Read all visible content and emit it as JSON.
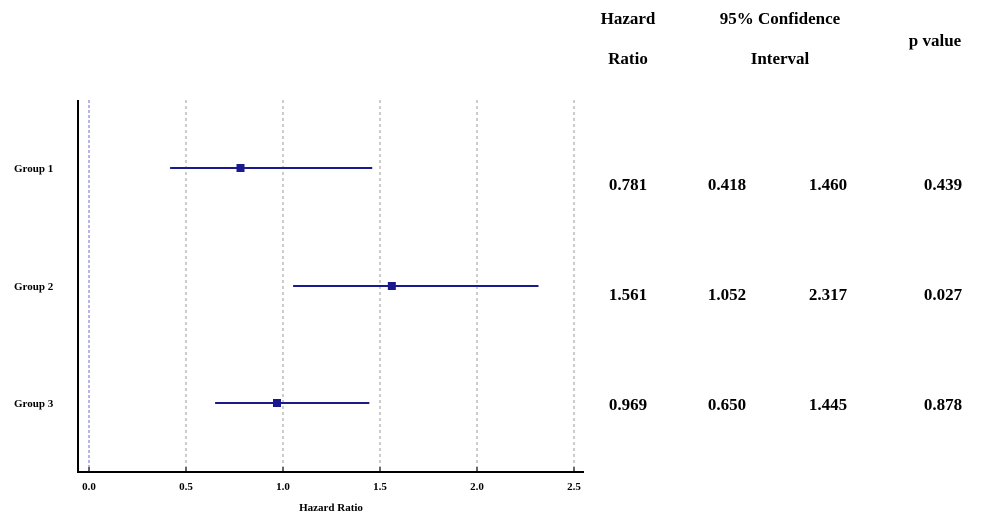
{
  "chart_data": {
    "type": "forest",
    "xlabel": "Hazard Ratio",
    "xlim": [
      0.0,
      2.5
    ],
    "xticks": [
      "0.0",
      "0.5",
      "1.0",
      "1.5",
      "2.0",
      "2.5"
    ],
    "grid": "vertical dashed at ticks",
    "reference_line": 0.0,
    "colors": {
      "marker": "#1a1a8c",
      "reference": "#6b6bd6",
      "grid": "#9a9a9a"
    },
    "rows": [
      {
        "label": "Group 1",
        "hr": 0.781,
        "ci_low": 0.418,
        "ci_high": 1.46,
        "p": 0.439
      },
      {
        "label": "Group 2",
        "hr": 1.561,
        "ci_low": 1.052,
        "ci_high": 2.317,
        "p": 0.027
      },
      {
        "label": "Group 3",
        "hr": 0.969,
        "ci_low": 0.65,
        "ci_high": 1.445,
        "p": 0.878
      }
    ]
  },
  "table": {
    "headers": {
      "hazard_ratio_line1": "Hazard",
      "hazard_ratio_line2": "Ratio",
      "ci_line1": "95% Confidence",
      "ci_line2": "Interval",
      "p_value": "p value"
    },
    "rows": [
      {
        "hr": "0.781",
        "ci_low": "0.418",
        "ci_high": "1.460",
        "p": "0.439"
      },
      {
        "hr": "1.561",
        "ci_low": "1.052",
        "ci_high": "2.317",
        "p": "0.027"
      },
      {
        "hr": "0.969",
        "ci_low": "0.650",
        "ci_high": "1.445",
        "p": "0.878"
      }
    ]
  }
}
